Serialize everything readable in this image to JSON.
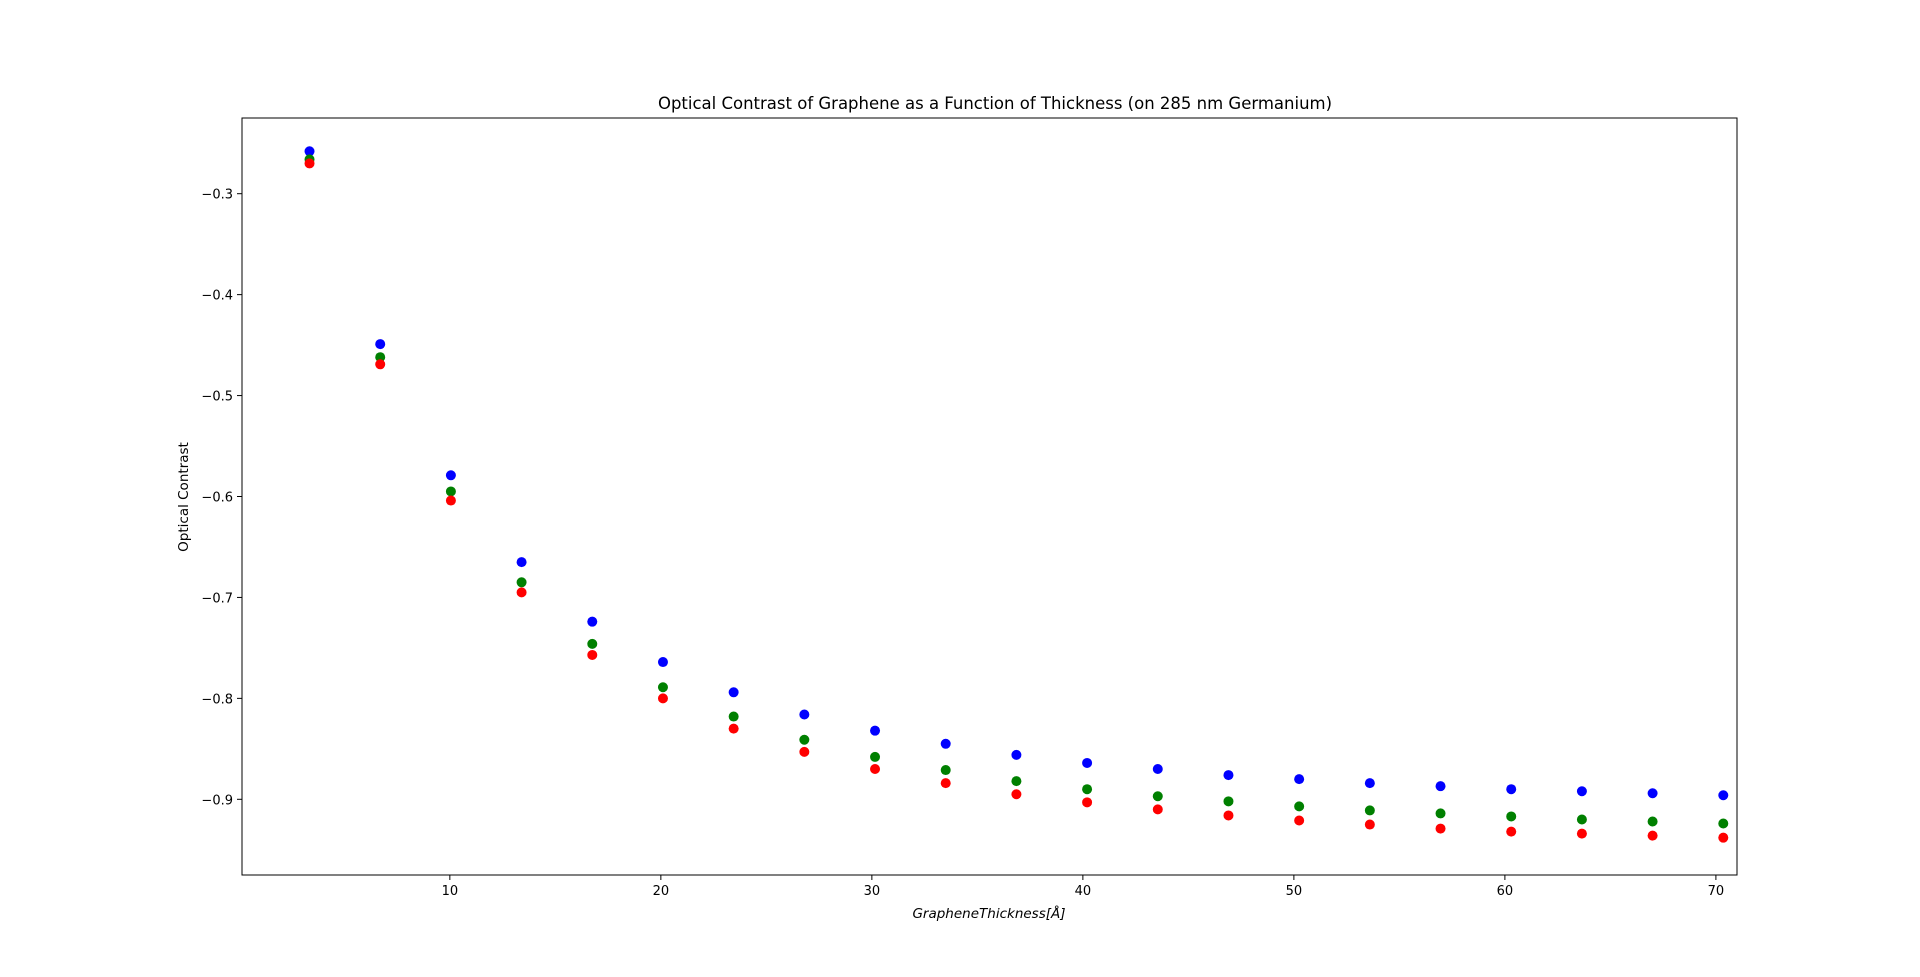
{
  "chart_data": {
    "type": "scatter",
    "title": "Optical Contrast of Graphene as a Function of Thickness (on 285 nm Germanium)",
    "xlabel": "GrapheneThickness[Å]",
    "ylabel": "Optical Contrast",
    "xlim": [
      0.15,
      71.0
    ],
    "ylim": [
      -0.975,
      -0.225
    ],
    "xticks": [
      10,
      20,
      30,
      40,
      50,
      60,
      70
    ],
    "yticks": [
      -0.3,
      -0.4,
      -0.5,
      -0.6,
      -0.7,
      -0.8,
      -0.9
    ],
    "xtick_labels": [
      "10",
      "20",
      "30",
      "40",
      "50",
      "60",
      "70"
    ],
    "ytick_labels": [
      "−0.3",
      "−0.4",
      "−0.5",
      "−0.6",
      "−0.7",
      "−0.8",
      "−0.9"
    ],
    "grid": false,
    "x": [
      3.35,
      6.7,
      10.05,
      13.4,
      16.75,
      20.1,
      23.45,
      26.8,
      30.15,
      33.5,
      36.85,
      40.2,
      43.55,
      46.9,
      50.25,
      53.6,
      56.95,
      60.3,
      63.65,
      67.0,
      70.35
    ],
    "series": [
      {
        "color": "#0000ff",
        "values": [
          -0.258,
          -0.449,
          -0.579,
          -0.665,
          -0.724,
          -0.764,
          -0.794,
          -0.816,
          -0.832,
          -0.845,
          -0.856,
          -0.864,
          -0.87,
          -0.876,
          -0.88,
          -0.884,
          -0.887,
          -0.89,
          -0.892,
          -0.894,
          -0.896
        ]
      },
      {
        "color": "#008000",
        "values": [
          -0.266,
          -0.462,
          -0.595,
          -0.685,
          -0.746,
          -0.789,
          -0.818,
          -0.841,
          -0.858,
          -0.871,
          -0.882,
          -0.89,
          -0.897,
          -0.902,
          -0.907,
          -0.911,
          -0.914,
          -0.917,
          -0.92,
          -0.922,
          -0.924
        ]
      },
      {
        "color": "#ff0000",
        "values": [
          -0.27,
          -0.469,
          -0.604,
          -0.695,
          -0.757,
          -0.8,
          -0.83,
          -0.853,
          -0.87,
          -0.884,
          -0.895,
          -0.903,
          -0.91,
          -0.916,
          -0.921,
          -0.925,
          -0.929,
          -0.932,
          -0.934,
          -0.936,
          -0.938
        ]
      }
    ]
  }
}
